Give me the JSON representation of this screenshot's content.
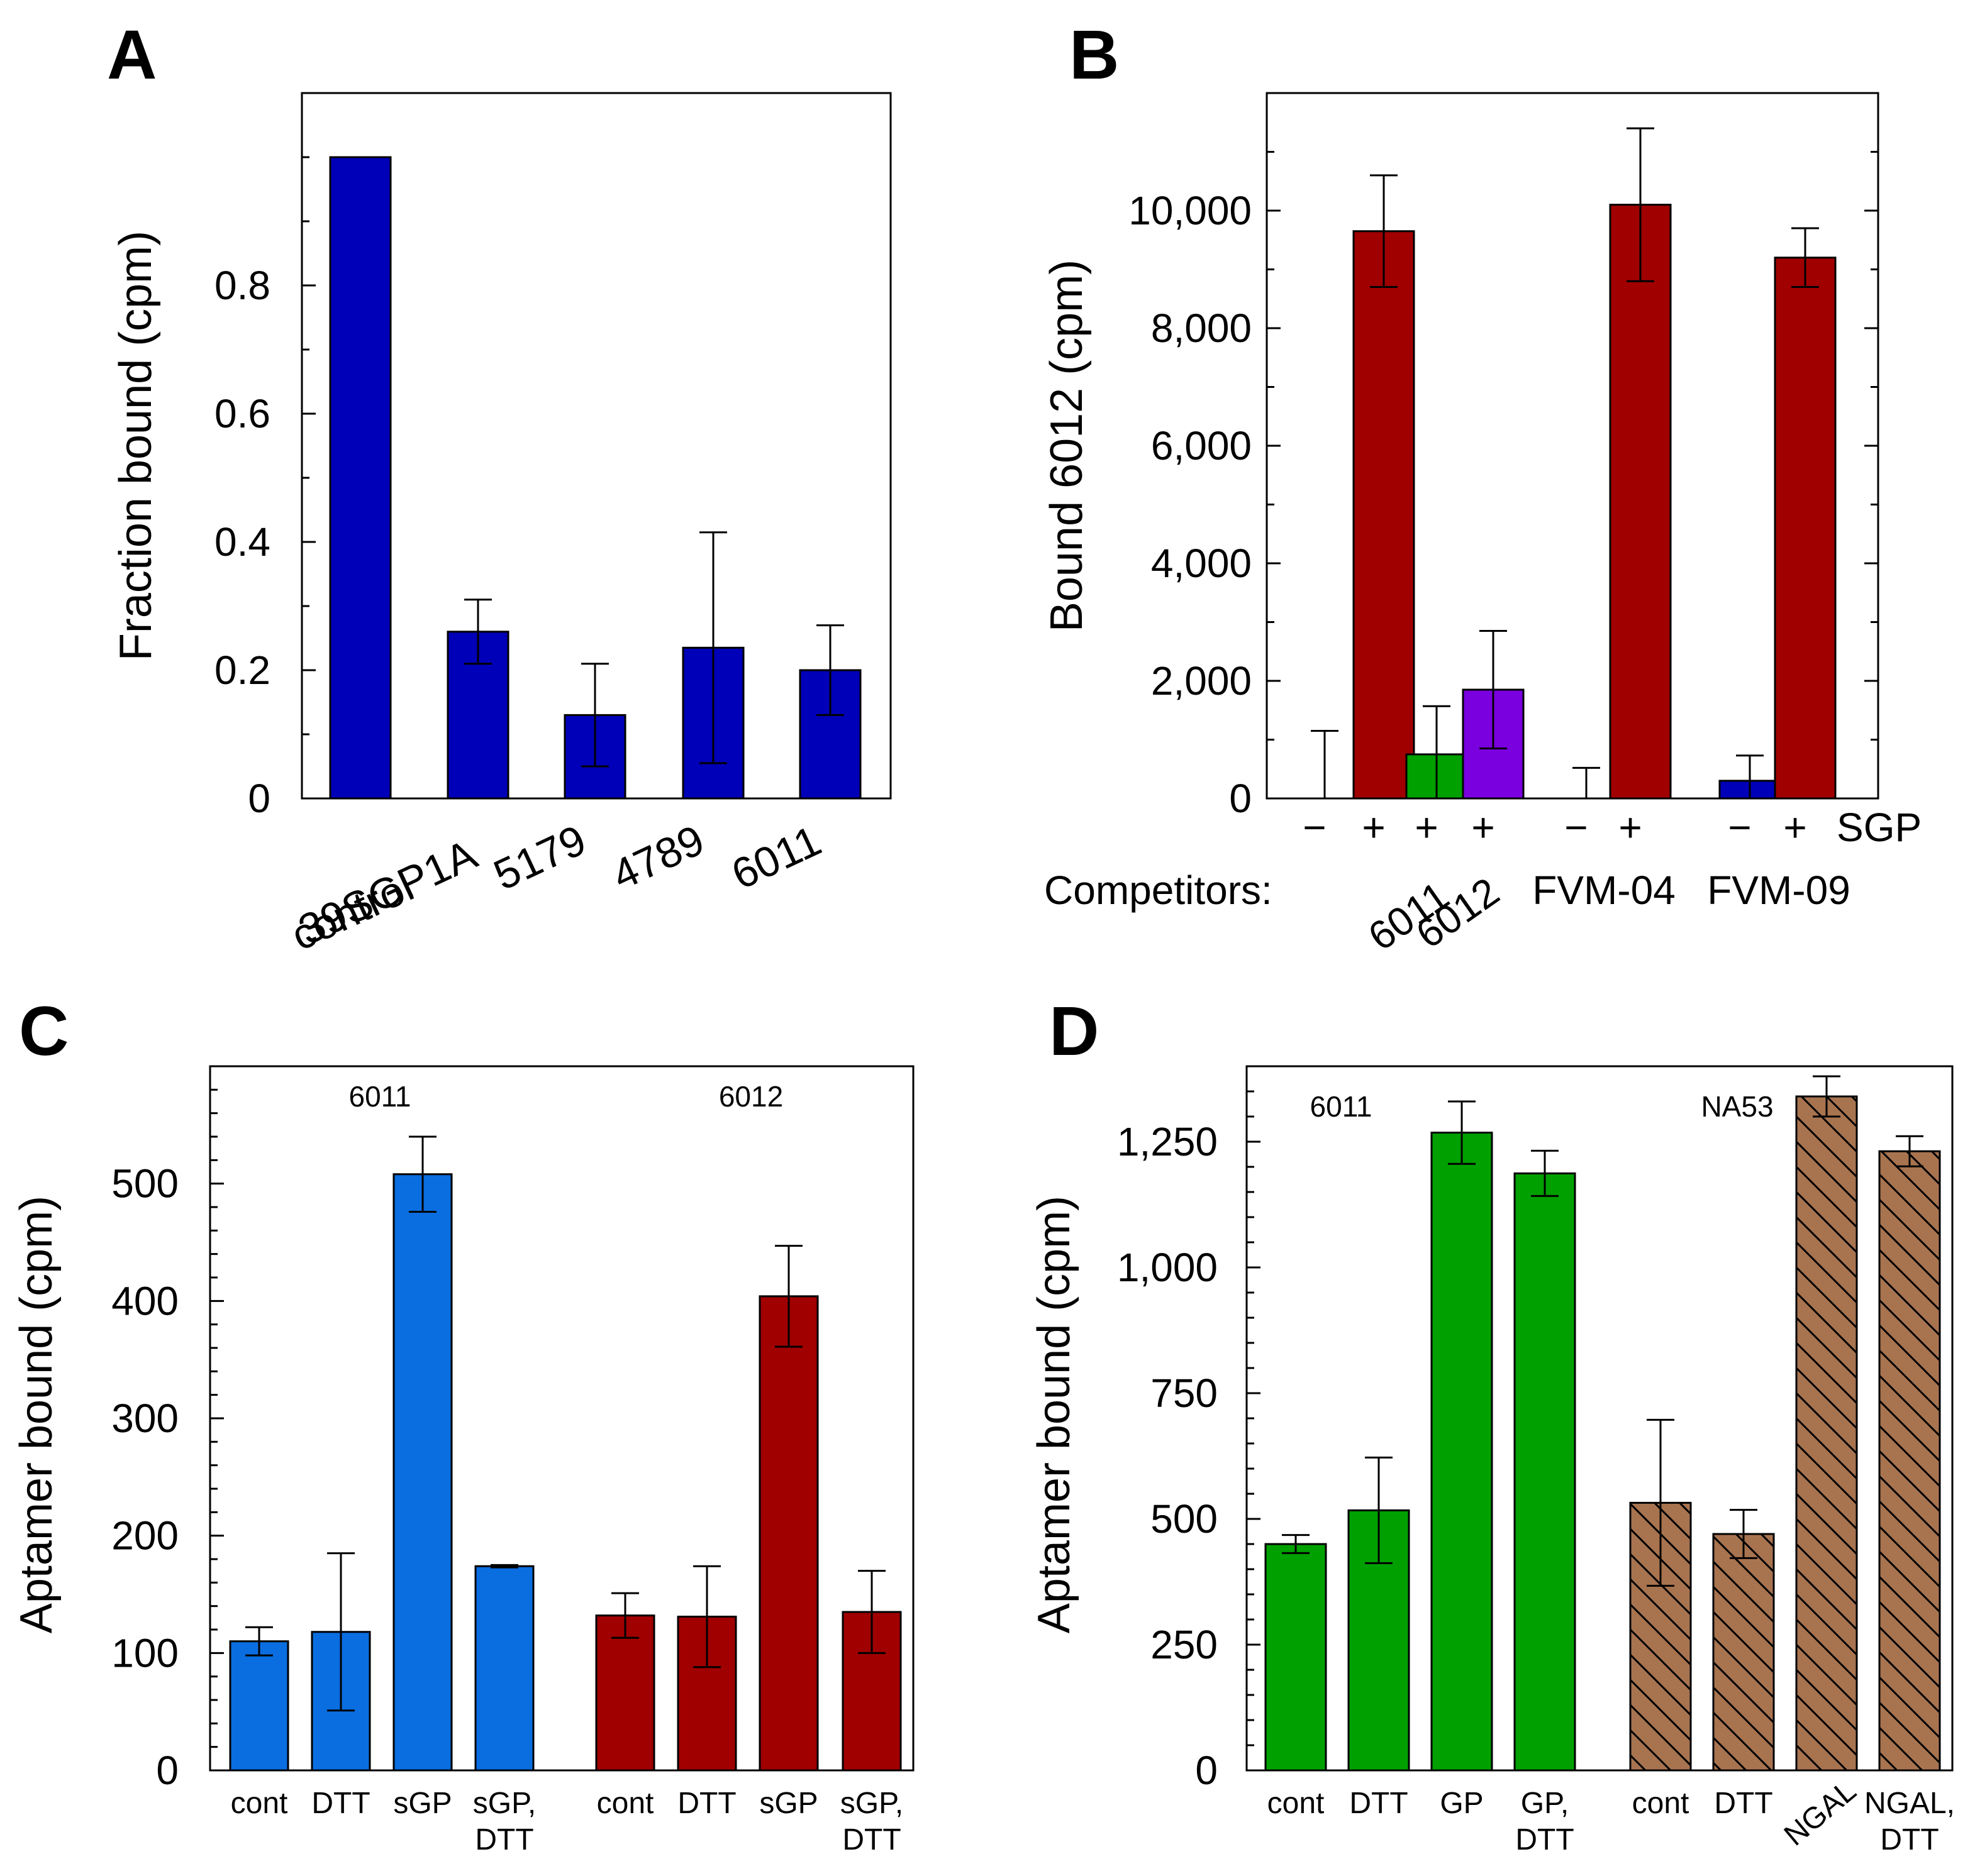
{
  "colors": {
    "navy": "#0000b8",
    "darkred": "#a00000",
    "green": "#00a000",
    "purple": "#7a00e0",
    "lightblue": "#0a6ee0",
    "brown": "#a87450"
  },
  "chart_data": [
    {
      "panel": "A",
      "type": "bar",
      "ylabel": "Fraction bound (cpm)",
      "ylim": [
        0,
        1.1
      ],
      "yticks": [
        0,
        0.2,
        0.4,
        0.6,
        0.8
      ],
      "ytick_labels": [
        "0",
        "0.2",
        "0.4",
        "0.6",
        "0.8"
      ],
      "categories": [
        "control",
        "39SGP1A",
        "5179",
        "4789",
        "6011"
      ],
      "values": [
        1.0,
        0.26,
        0.13,
        0.235,
        0.2
      ],
      "errors": [
        0,
        0.05,
        0.08,
        0.18,
        0.07
      ],
      "colors": [
        "navy",
        "navy",
        "navy",
        "navy",
        "navy"
      ]
    },
    {
      "panel": "B",
      "type": "bar",
      "ylabel": "Bound 6012 (cpm)",
      "ylim": [
        0,
        12000
      ],
      "yticks": [
        0,
        2000,
        4000,
        6000,
        8000,
        10000
      ],
      "ytick_labels": [
        "0",
        "2,000",
        "4,000",
        "6,000",
        "8,000",
        "10,000"
      ],
      "sgp_signs": [
        "−",
        "+",
        "+",
        "+",
        "−",
        "+",
        "−",
        "+"
      ],
      "sgp_label": "SGP",
      "competitors_label": "Competitors:",
      "competitor_labels": [
        "6011",
        "6012",
        "FVM-04",
        "FVM-09"
      ],
      "values": [
        0,
        9650,
        750,
        1850,
        0,
        10100,
        300,
        9200
      ],
      "errors": [
        1150,
        950,
        820,
        1000,
        520,
        1300,
        430,
        500
      ],
      "colors": [
        "darkred",
        "darkred",
        "green",
        "purple",
        "darkred",
        "darkred",
        "navy",
        "darkred"
      ]
    },
    {
      "panel": "C",
      "type": "bar",
      "ylabel": "Aptamer bound (cpm)",
      "ylim": [
        0,
        600
      ],
      "yticks": [
        0,
        100,
        200,
        300,
        400,
        500
      ],
      "ytick_labels": [
        "0",
        "100",
        "200",
        "300",
        "400",
        "500"
      ],
      "groups": [
        "6011",
        "6012"
      ],
      "categories": [
        "cont",
        "DTT",
        "sGP",
        "sGP,|DTT",
        "cont",
        "DTT",
        "sGP",
        "sGP,|DTT"
      ],
      "values": [
        110,
        118,
        508,
        174,
        132,
        131,
        404,
        135
      ],
      "errors": [
        12,
        67,
        32,
        1,
        19,
        43,
        43,
        35
      ],
      "colors": [
        "lightblue",
        "lightblue",
        "lightblue",
        "lightblue",
        "darkred",
        "darkred",
        "darkred",
        "darkred"
      ]
    },
    {
      "panel": "D",
      "type": "bar",
      "ylabel": "Aptamer bound (cpm)",
      "ylim": [
        0,
        1400
      ],
      "yticks": [
        0,
        250,
        500,
        750,
        1000,
        1250
      ],
      "ytick_labels": [
        "0",
        "250",
        "500",
        "750",
        "1,000",
        "1,250"
      ],
      "groups": [
        "6011",
        "NA53"
      ],
      "categories": [
        "cont",
        "DTT",
        "GP",
        "GP,|DTT",
        "cont",
        "DTT",
        "NGAL",
        "NGAL,|DTT"
      ],
      "values": [
        450,
        517,
        1268,
        1187,
        532,
        470,
        1340,
        1231
      ],
      "errors": [
        18,
        105,
        62,
        45,
        165,
        48,
        40,
        30
      ],
      "colors": [
        "green",
        "green",
        "green",
        "green",
        "brown",
        "brown",
        "brown",
        "brown"
      ]
    }
  ]
}
